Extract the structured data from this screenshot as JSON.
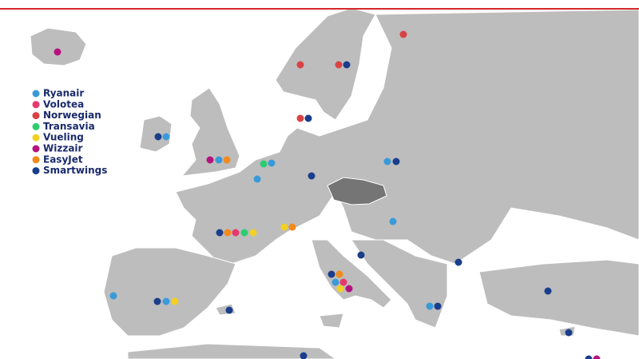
{
  "legend": {
    "items": [
      {
        "name": "Ryanair",
        "color": "#3a9ad9"
      },
      {
        "name": "Volotea",
        "color": "#e8386d"
      },
      {
        "name": "Norwegian",
        "color": "#d94343"
      },
      {
        "name": "Transavia",
        "color": "#2ecc71"
      },
      {
        "name": "Vueling",
        "color": "#f2d024"
      },
      {
        "name": "Wizzair",
        "color": "#b5127f"
      },
      {
        "name": "EasyJet",
        "color": "#f28a1c"
      },
      {
        "name": "Smartwings",
        "color": "#1a3e8c"
      }
    ]
  }
}
